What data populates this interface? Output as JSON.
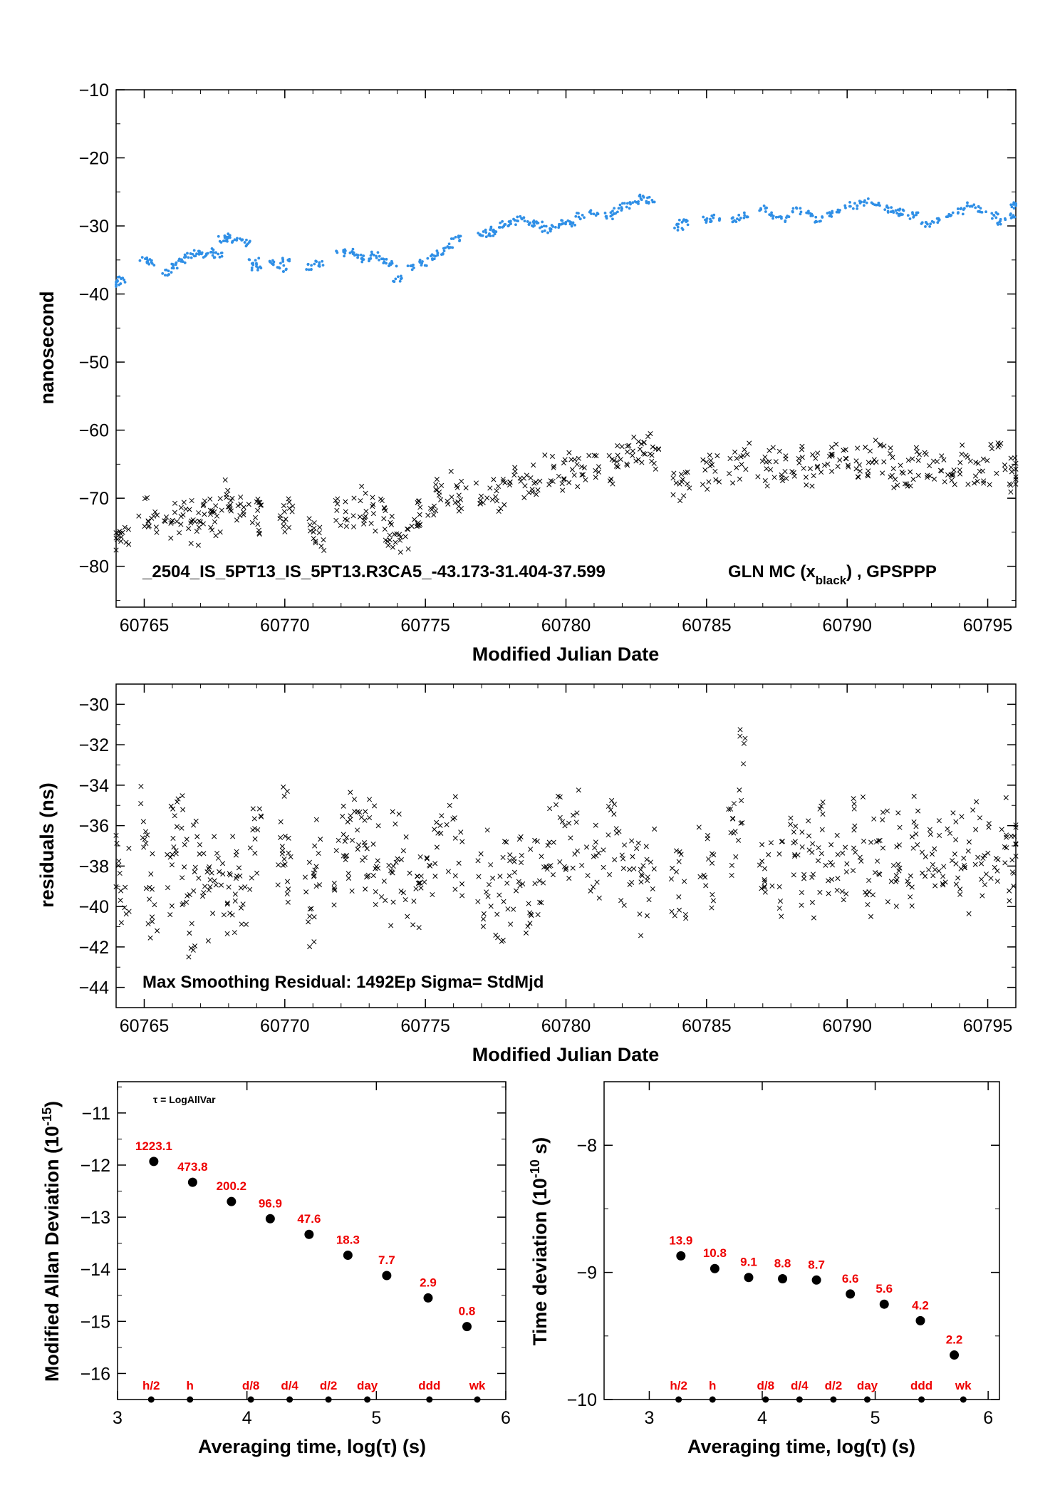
{
  "chart_data": [
    {
      "id": "top",
      "type": "scatter",
      "xlabel": "Modified Julian Date",
      "ylabel": "nanosecond",
      "xlim": [
        60764.0,
        60796.0
      ],
      "ylim": [
        -86,
        -10
      ],
      "xticks": [
        60765,
        60770,
        60775,
        60780,
        60785,
        60790,
        60795
      ],
      "yticks": [
        -80,
        -70,
        -60,
        -50,
        -40,
        -30,
        -20,
        -10
      ],
      "annotation": "_2504_IS_5PT13_IS_5PT13.R3CA5_-43.173-31.404-37.599",
      "annotation2": "GLN MC (x",
      "annotation2_sub": "black",
      "annotation2_end": ") ,  GPSPPP",
      "series": [
        {
          "color": "#2f8fe6",
          "marker": "dot",
          "x": [
            60764.0,
            60764.2,
            60765.0,
            60765.2,
            60765.8,
            60766.0,
            60766.3,
            60766.6,
            60766.9,
            60767.1,
            60767.4,
            60767.6,
            60767.8,
            60768.0,
            60768.3,
            60768.6,
            60768.9,
            60769.0,
            60769.6,
            60769.9,
            60770.0,
            60770.9,
            60771.2,
            60772.0,
            60772.3,
            60772.6,
            60772.9,
            60773.2,
            60773.5,
            60773.8,
            60774.0,
            60774.5,
            60774.9,
            60775.2,
            60775.5,
            60775.8,
            60776.1,
            60777.0,
            60777.3,
            60777.5,
            60777.8,
            60778.1,
            60778.4,
            60778.7,
            60779.0,
            60779.3,
            60779.6,
            60779.9,
            60780.2,
            60780.5,
            60781.0,
            60781.5,
            60781.8,
            60782.1,
            60782.4,
            60782.7,
            60783.0,
            60784.0,
            60784.2,
            60785.0,
            60785.3,
            60786.0,
            60786.3,
            60787.0,
            60787.4,
            60787.8,
            60788.2,
            60788.6,
            60789.0,
            60789.4,
            60789.8,
            60790.2,
            60790.6,
            60791.0,
            60791.4,
            60791.8,
            60792.0,
            60792.4,
            60792.8,
            60793.2,
            60793.6,
            60794.0,
            60794.4,
            60794.8,
            60795.2,
            60795.5,
            60795.8,
            60796.0
          ],
          "y": [
            -38.5,
            -37.8,
            -35.0,
            -35.3,
            -36.8,
            -35.8,
            -35.0,
            -34.5,
            -34.0,
            -34.3,
            -33.6,
            -34.2,
            -32.0,
            -31.6,
            -32.0,
            -32.5,
            -35.2,
            -36.0,
            -35.5,
            -36.2,
            -35.0,
            -36.0,
            -35.5,
            -34.0,
            -33.9,
            -34.5,
            -34.8,
            -34.3,
            -35.0,
            -35.5,
            -37.8,
            -36.2,
            -35.4,
            -34.6,
            -34.0,
            -33.0,
            -31.8,
            -31.2,
            -31.0,
            -30.5,
            -29.8,
            -29.5,
            -29.0,
            -29.6,
            -29.8,
            -30.5,
            -30.2,
            -29.5,
            -29.8,
            -28.5,
            -28.0,
            -28.5,
            -27.8,
            -27.0,
            -26.5,
            -25.9,
            -26.2,
            -30.2,
            -29.5,
            -29.0,
            -28.7,
            -29.0,
            -28.5,
            -27.5,
            -28.5,
            -29.0,
            -27.8,
            -28.2,
            -29.0,
            -28.2,
            -27.5,
            -27.0,
            -26.5,
            -27.0,
            -27.5,
            -28.0,
            -28.0,
            -28.5,
            -29.8,
            -29.0,
            -28.2,
            -27.8,
            -27.0,
            -27.5,
            -28.5,
            -29.3,
            -28.7,
            -27.0
          ]
        },
        {
          "color": "#000000",
          "marker": "x",
          "x": [
            60764.1,
            60764.3,
            60765.0,
            60765.3,
            60765.9,
            60766.2,
            60766.5,
            60766.8,
            60767.0,
            60767.3,
            60767.6,
            60767.9,
            60768.1,
            60768.4,
            60768.9,
            60769.1,
            60769.9,
            60770.1,
            60770.9,
            60771.2,
            60772.0,
            60772.3,
            60772.7,
            60773.0,
            60773.4,
            60773.7,
            60773.9,
            60774.2,
            60774.6,
            60774.9,
            60775.3,
            60775.6,
            60776.0,
            60776.3,
            60777.0,
            60777.4,
            60777.8,
            60778.2,
            60778.6,
            60779.0,
            60779.4,
            60779.8,
            60780.2,
            60780.6,
            60781.0,
            60781.6,
            60782.0,
            60782.3,
            60782.6,
            60782.9,
            60783.1,
            60784.0,
            60784.2,
            60785.0,
            60785.3,
            60786.0,
            60786.4,
            60787.0,
            60787.4,
            60787.8,
            60788.2,
            60788.6,
            60789.0,
            60789.4,
            60789.8,
            60790.2,
            60790.6,
            60791.0,
            60791.4,
            60791.8,
            60792.1,
            60792.5,
            60792.9,
            60793.3,
            60793.7,
            60794.1,
            60794.5,
            60794.9,
            60795.3,
            60795.7,
            60796.0
          ],
          "y": [
            -77.0,
            -76.5,
            -72.0,
            -74.0,
            -74.0,
            -73.0,
            -72.5,
            -74.5,
            -71.5,
            -72.5,
            -73.0,
            -69.5,
            -71.0,
            -70.5,
            -73.0,
            -72.5,
            -73.0,
            -72.0,
            -74.5,
            -76.0,
            -71.5,
            -72.0,
            -70.5,
            -71.5,
            -72.5,
            -74.5,
            -75.5,
            -76.5,
            -72.5,
            -71.8,
            -70.5,
            -69.0,
            -68.5,
            -70.0,
            -69.0,
            -68.0,
            -69.5,
            -67.5,
            -69.0,
            -67.0,
            -66.0,
            -66.5,
            -65.5,
            -66.0,
            -64.5,
            -66.0,
            -64.5,
            -63.0,
            -64.0,
            -62.5,
            -64.0,
            -68.5,
            -68.0,
            -66.5,
            -66.0,
            -65.5,
            -64.0,
            -66.0,
            -65.0,
            -66.0,
            -64.5,
            -66.0,
            -65.0,
            -64.5,
            -63.5,
            -64.5,
            -65.0,
            -63.5,
            -64.5,
            -66.0,
            -66.5,
            -65.0,
            -64.5,
            -65.5,
            -66.0,
            -64.5,
            -66.5,
            -65.5,
            -64.0,
            -67.5,
            -66.5
          ]
        }
      ]
    },
    {
      "id": "middle",
      "type": "scatter",
      "xlabel": "Modified Julian Date",
      "ylabel": "residuals (ns)",
      "xlim": [
        60764.0,
        60796.0
      ],
      "ylim": [
        -45,
        -29
      ],
      "xticks": [
        60765,
        60770,
        60775,
        60780,
        60785,
        60790,
        60795
      ],
      "yticks": [
        -44,
        -42,
        -40,
        -38,
        -36,
        -34,
        -32,
        -30
      ],
      "annotation": "Max Smoothing Residual: 1492Ep  Sigma= StdMjd",
      "series": [
        {
          "color": "#000000",
          "marker": "x",
          "x": [
            60764.1,
            60764.3,
            60765.0,
            60765.2,
            60765.3,
            60765.9,
            60766.1,
            60766.3,
            60766.5,
            60766.7,
            60766.9,
            60767.1,
            60767.3,
            60767.5,
            60767.9,
            60768.1,
            60768.3,
            60768.5,
            60768.9,
            60769.0,
            60769.9,
            60770.0,
            60770.1,
            60770.9,
            60771.0,
            60771.2,
            60771.9,
            60772.1,
            60772.3,
            60772.5,
            60772.7,
            60772.9,
            60773.1,
            60773.4,
            60773.7,
            60773.9,
            60774.2,
            60774.6,
            60774.9,
            60775.2,
            60775.5,
            60775.9,
            60776.2,
            60777.0,
            60777.3,
            60777.6,
            60777.9,
            60778.1,
            60778.3,
            60778.6,
            60778.9,
            60779.2,
            60779.5,
            60779.8,
            60780.1,
            60780.4,
            60780.9,
            60781.2,
            60781.6,
            60781.9,
            60782.2,
            60782.5,
            60782.8,
            60783.0,
            60783.9,
            60784.1,
            60784.9,
            60785.1,
            60785.9,
            60786.1,
            60786.3,
            60786.9,
            60787.2,
            60787.6,
            60788.0,
            60788.3,
            60788.6,
            60788.9,
            60789.2,
            60789.5,
            60789.8,
            60790.1,
            60790.4,
            60790.7,
            60791.0,
            60791.3,
            60791.6,
            60791.9,
            60792.2,
            60792.5,
            60792.8,
            60793.1,
            60793.4,
            60793.7,
            60794.0,
            60794.3,
            60794.6,
            60794.9,
            60795.2,
            60795.5,
            60795.8,
            60796.0
          ],
          "y": [
            -38.0,
            -39.0,
            -36.0,
            -38.0,
            -40.5,
            -38.5,
            -37.0,
            -36.0,
            -38.0,
            -40.5,
            -37.5,
            -39.0,
            -40.0,
            -38.5,
            -38.5,
            -40.0,
            -37.5,
            -39.0,
            -38.0,
            -36.0,
            -37.5,
            -36.0,
            -38.0,
            -38.5,
            -40.0,
            -37.5,
            -38.5,
            -36.5,
            -37.5,
            -35.5,
            -36.5,
            -37.5,
            -36.5,
            -38.0,
            -39.0,
            -37.0,
            -38.5,
            -39.5,
            -37.5,
            -38.0,
            -37.0,
            -36.5,
            -38.0,
            -39.0,
            -38.0,
            -40.0,
            -38.5,
            -39.5,
            -37.5,
            -40.0,
            -38.5,
            -38.0,
            -37.0,
            -36.5,
            -37.5,
            -36.0,
            -37.5,
            -38.5,
            -36.5,
            -38.0,
            -37.0,
            -38.5,
            -39.5,
            -38.0,
            -38.5,
            -39.0,
            -37.5,
            -38.5,
            -36.5,
            -35.0,
            -33.0,
            -38.0,
            -37.5,
            -38.5,
            -36.5,
            -38.0,
            -37.5,
            -39.0,
            -36.5,
            -37.5,
            -38.0,
            -37.0,
            -36.0,
            -38.5,
            -37.5,
            -36.5,
            -38.0,
            -37.0,
            -38.5,
            -36.5,
            -37.0,
            -37.5,
            -38.0,
            -36.5,
            -37.5,
            -38.5,
            -36.0,
            -37.5,
            -37.0,
            -36.5,
            -38.0,
            -37.0
          ]
        }
      ]
    },
    {
      "id": "allan",
      "type": "scatter",
      "xlabel": "Averaging time, log(τ) (s)",
      "ylabel": "Modified Allan Deviation (10",
      "ylabel_sup": "-15",
      "ylabel_end": ")",
      "xlim": [
        3,
        6
      ],
      "ylim": [
        -16.5,
        -10.4
      ],
      "xticks": [
        3,
        4,
        5,
        6
      ],
      "yticks": [
        -16,
        -15,
        -14,
        -13,
        -12,
        -11
      ],
      "note": "τ = LogAllVar",
      "points": {
        "x": [
          3.28,
          3.58,
          3.88,
          4.18,
          4.48,
          4.78,
          5.08,
          5.4,
          5.7
        ],
        "y": [
          -11.93,
          -12.33,
          -12.7,
          -13.03,
          -13.33,
          -13.73,
          -14.12,
          -14.55,
          -15.1
        ],
        "labels": [
          "1223.1",
          "473.8",
          "200.2",
          "96.9",
          "47.6",
          "18.3",
          "7.7",
          "2.9",
          "0.8"
        ]
      },
      "markers": {
        "x": [
          3.26,
          3.56,
          4.03,
          4.33,
          4.63,
          4.93,
          5.41,
          5.78
        ],
        "labels": [
          "h/2",
          "h",
          "d/8",
          "d/4",
          "d/2",
          "day",
          "ddd",
          "wk"
        ]
      }
    },
    {
      "id": "tdev",
      "type": "scatter",
      "xlabel": "Averaging time, log(τ) (s)",
      "ylabel": "Time deviation (10",
      "ylabel_sup": "-10",
      "ylabel_end": " s)",
      "xlim": [
        2.6,
        6.1
      ],
      "ylim": [
        -10.0,
        -7.5
      ],
      "xticks": [
        3,
        4,
        5,
        6
      ],
      "yticks": [
        -10,
        -9,
        -8
      ],
      "points": {
        "x": [
          3.28,
          3.58,
          3.88,
          4.18,
          4.48,
          4.78,
          5.08,
          5.4,
          5.7
        ],
        "y": [
          -8.87,
          -8.97,
          -9.04,
          -9.05,
          -9.06,
          -9.17,
          -9.25,
          -9.38,
          -9.65
        ],
        "labels": [
          "13.9",
          "10.8",
          "9.1",
          "8.8",
          "8.7",
          "6.6",
          "5.6",
          "4.2",
          "2.2"
        ]
      },
      "markers": {
        "x": [
          3.26,
          3.56,
          4.03,
          4.33,
          4.63,
          4.93,
          5.41,
          5.78
        ],
        "labels": [
          "h/2",
          "h",
          "d/8",
          "d/4",
          "d/2",
          "day",
          "ddd",
          "wk"
        ]
      }
    }
  ]
}
